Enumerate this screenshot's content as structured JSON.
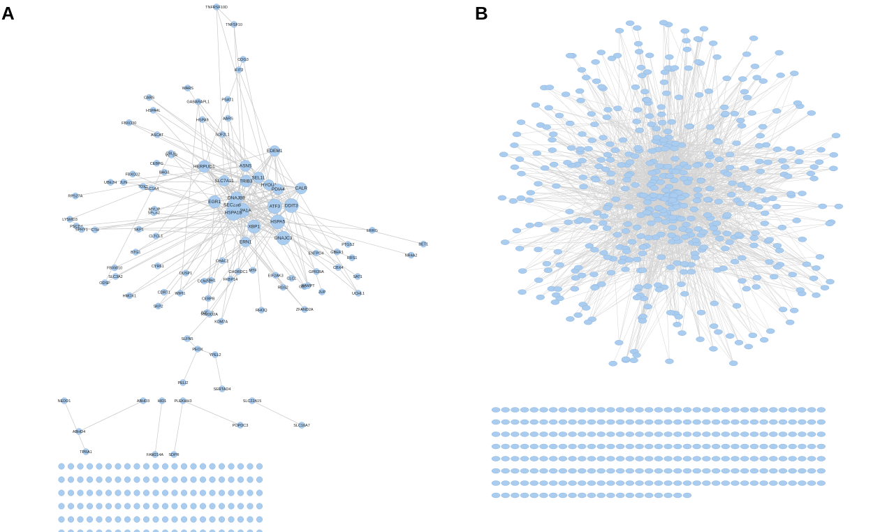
{
  "panels": [
    {
      "letter": "A",
      "hub_nodes": [
        "DDIT3",
        "ATF3",
        "HSPA5",
        "DNAJC3",
        "XBP1",
        "ERN1",
        "HSPA1A",
        "HSPA1B",
        "SEC23B",
        "EGR1",
        "DNAJB9",
        "HERPUD1",
        "SLC7A11",
        "TRIB3",
        "ASNS",
        "SEL1L",
        "EDEM1",
        "HYOU1",
        "PDIA4",
        "CALR"
      ],
      "peripheral_nodes": [
        "TNFRSF10D",
        "TNFSF10",
        "COG3",
        "IFIT2",
        "ERRG",
        "BET1",
        "NR4A2",
        "PTGS2",
        "RRS1",
        "SAT1",
        "GBER1",
        "ENTPD4",
        "CBX4",
        "JUP",
        "CLCL",
        "GCLM",
        "ZFAND2A",
        "RGS2",
        "EIF2AK3",
        "MTF",
        "RHOQ",
        "KDM7A",
        "ADRB2",
        "CEBPB",
        "CHAC1",
        "FTH1",
        "CCNG2",
        "CDRT1",
        "SKP2",
        "DUSP1",
        "CYR61",
        "HMOX1",
        "SLC3A2",
        "BTG1",
        "FBXW10",
        "SKP1",
        "CLTCL1",
        "CTH",
        "PSCD4",
        "SPRY1",
        "SPC62",
        "MYLIP",
        "RPS27A",
        "TOX1",
        "SLC1A4",
        "UBE2H",
        "JUN",
        "FBXO32",
        "CEBPG",
        "BAG3",
        "LYSMD3",
        "VLDLR",
        "CBLB",
        "ASCAT",
        "FBXO30",
        "HSPA4L",
        "CARS",
        "ODSP",
        "GABARAPL1",
        "HSPA9",
        "WARS",
        "SDF2L1",
        "AARS",
        "PSAT1",
        "NAMPT",
        "CHORDC1",
        "FKBP14",
        "GPR39A",
        "UCHL1",
        "WIPI1",
        "RWDD2A",
        "SLFN5",
        "PEOX",
        "YPEL2",
        "PELI2",
        "SERTAD4",
        "NEDD1",
        "ABHD3",
        "HID1",
        "PLEKHH3",
        "SLC22A15",
        "ABHD4",
        "POPDC3",
        "SLC16A7",
        "FAM214A",
        "SDPR",
        "TPRA1"
      ],
      "isolated_rows": 7
    },
    {
      "letter": "B",
      "node_count_hint": "large network",
      "isolated_rows": 8
    }
  ],
  "colors": {
    "node_fill": "#a9ccef",
    "node_stroke": "#8fb6e0",
    "edge": "#c9c9c9",
    "text": "#222222"
  }
}
